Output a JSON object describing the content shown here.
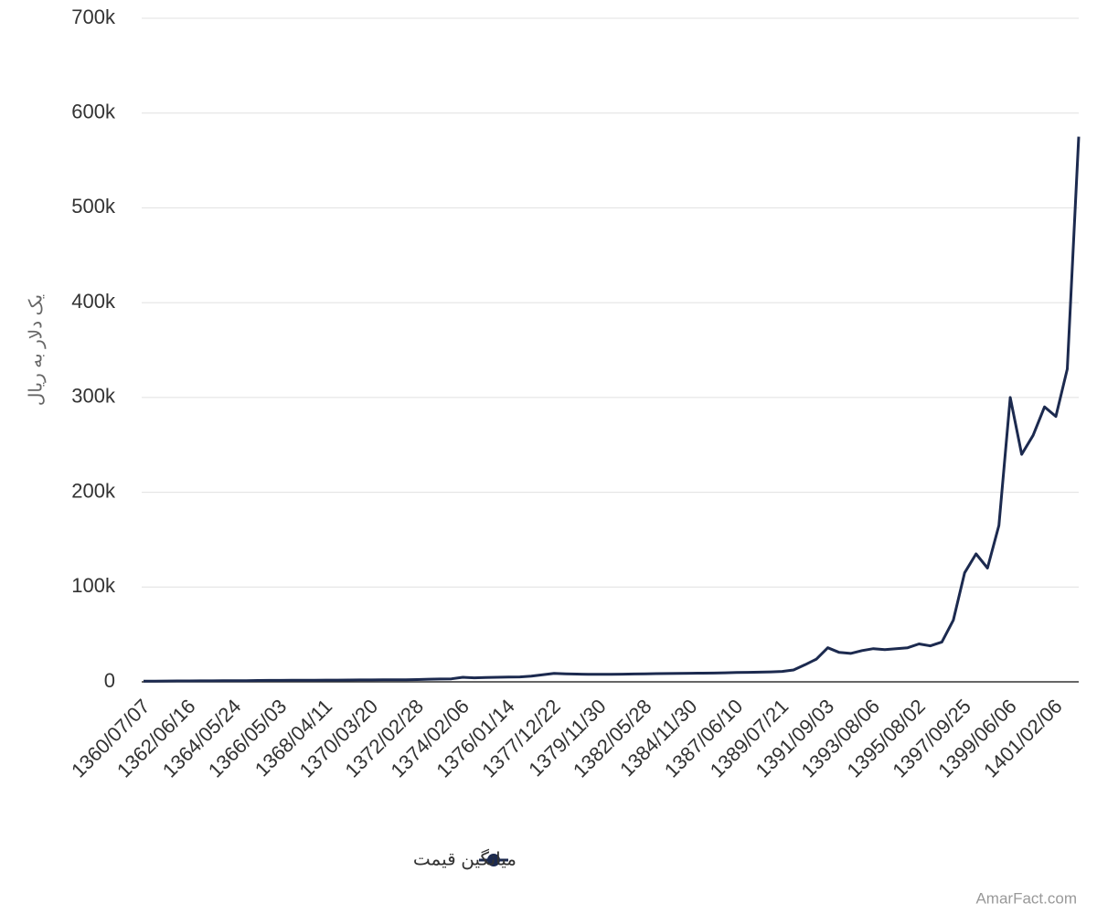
{
  "chart_data": {
    "type": "line",
    "y_label": "یک دلار به ریال",
    "credit": "AmarFact.com",
    "legend": "bottom",
    "grid": true,
    "categories": [
      "1360/07/07",
      null,
      null,
      null,
      "1362/06/16",
      null,
      null,
      null,
      "1364/05/24",
      null,
      null,
      null,
      "1366/05/03",
      null,
      null,
      null,
      "1368/04/11",
      null,
      null,
      null,
      "1370/03/20",
      null,
      null,
      null,
      "1372/02/28",
      null,
      null,
      null,
      "1374/02/06",
      null,
      null,
      null,
      "1376/01/14",
      null,
      null,
      null,
      "1377/12/22",
      null,
      null,
      null,
      "1379/11/30",
      null,
      null,
      null,
      "1382/05/28",
      null,
      null,
      null,
      "1384/11/30",
      null,
      null,
      null,
      "1387/06/10",
      null,
      null,
      null,
      "1389/07/21",
      null,
      null,
      null,
      "1391/09/03",
      null,
      null,
      null,
      "1393/08/06",
      null,
      null,
      null,
      "1395/08/02",
      null,
      null,
      null,
      "1397/09/25",
      null,
      null,
      null,
      "1399/06/06",
      null,
      null,
      null,
      "1401/02/06",
      null,
      null
    ],
    "series": [
      {
        "name": "میانگین قیمت",
        "color": "#1c2a4f",
        "values": [
          700,
          800,
          900,
          1000,
          1000,
          1100,
          1100,
          1200,
          1300,
          1300,
          1400,
          1500,
          1500,
          1600,
          1600,
          1700,
          1800,
          1800,
          1900,
          2000,
          2000,
          2100,
          2100,
          2200,
          2400,
          2800,
          3000,
          3200,
          4800,
          4200,
          4500,
          4800,
          5000,
          5200,
          6000,
          7500,
          9000,
          8500,
          8200,
          8000,
          8000,
          8000,
          8100,
          8300,
          8500,
          8700,
          8800,
          9000,
          9100,
          9200,
          9300,
          9500,
          9800,
          10000,
          10200,
          10500,
          11000,
          12500,
          18000,
          24000,
          36000,
          31000,
          30000,
          33000,
          35000,
          34000,
          35000,
          36000,
          40000,
          38000,
          42000,
          65000,
          115000,
          135000,
          120000,
          165000,
          300000,
          240000,
          260000,
          290000,
          280000,
          330000,
          575000
        ]
      }
    ],
    "ylim": [
      0,
      700000
    ],
    "yticks": [
      0,
      {
        "value": 100000,
        "label": "100k"
      },
      {
        "value": 200000,
        "label": "200k"
      },
      {
        "value": 300000,
        "label": "300k"
      },
      {
        "value": 400000,
        "label": "400k"
      },
      {
        "value": 500000,
        "label": "500k"
      },
      {
        "value": 600000,
        "label": "600k"
      },
      {
        "value": 700000,
        "label": "700k"
      }
    ]
  }
}
